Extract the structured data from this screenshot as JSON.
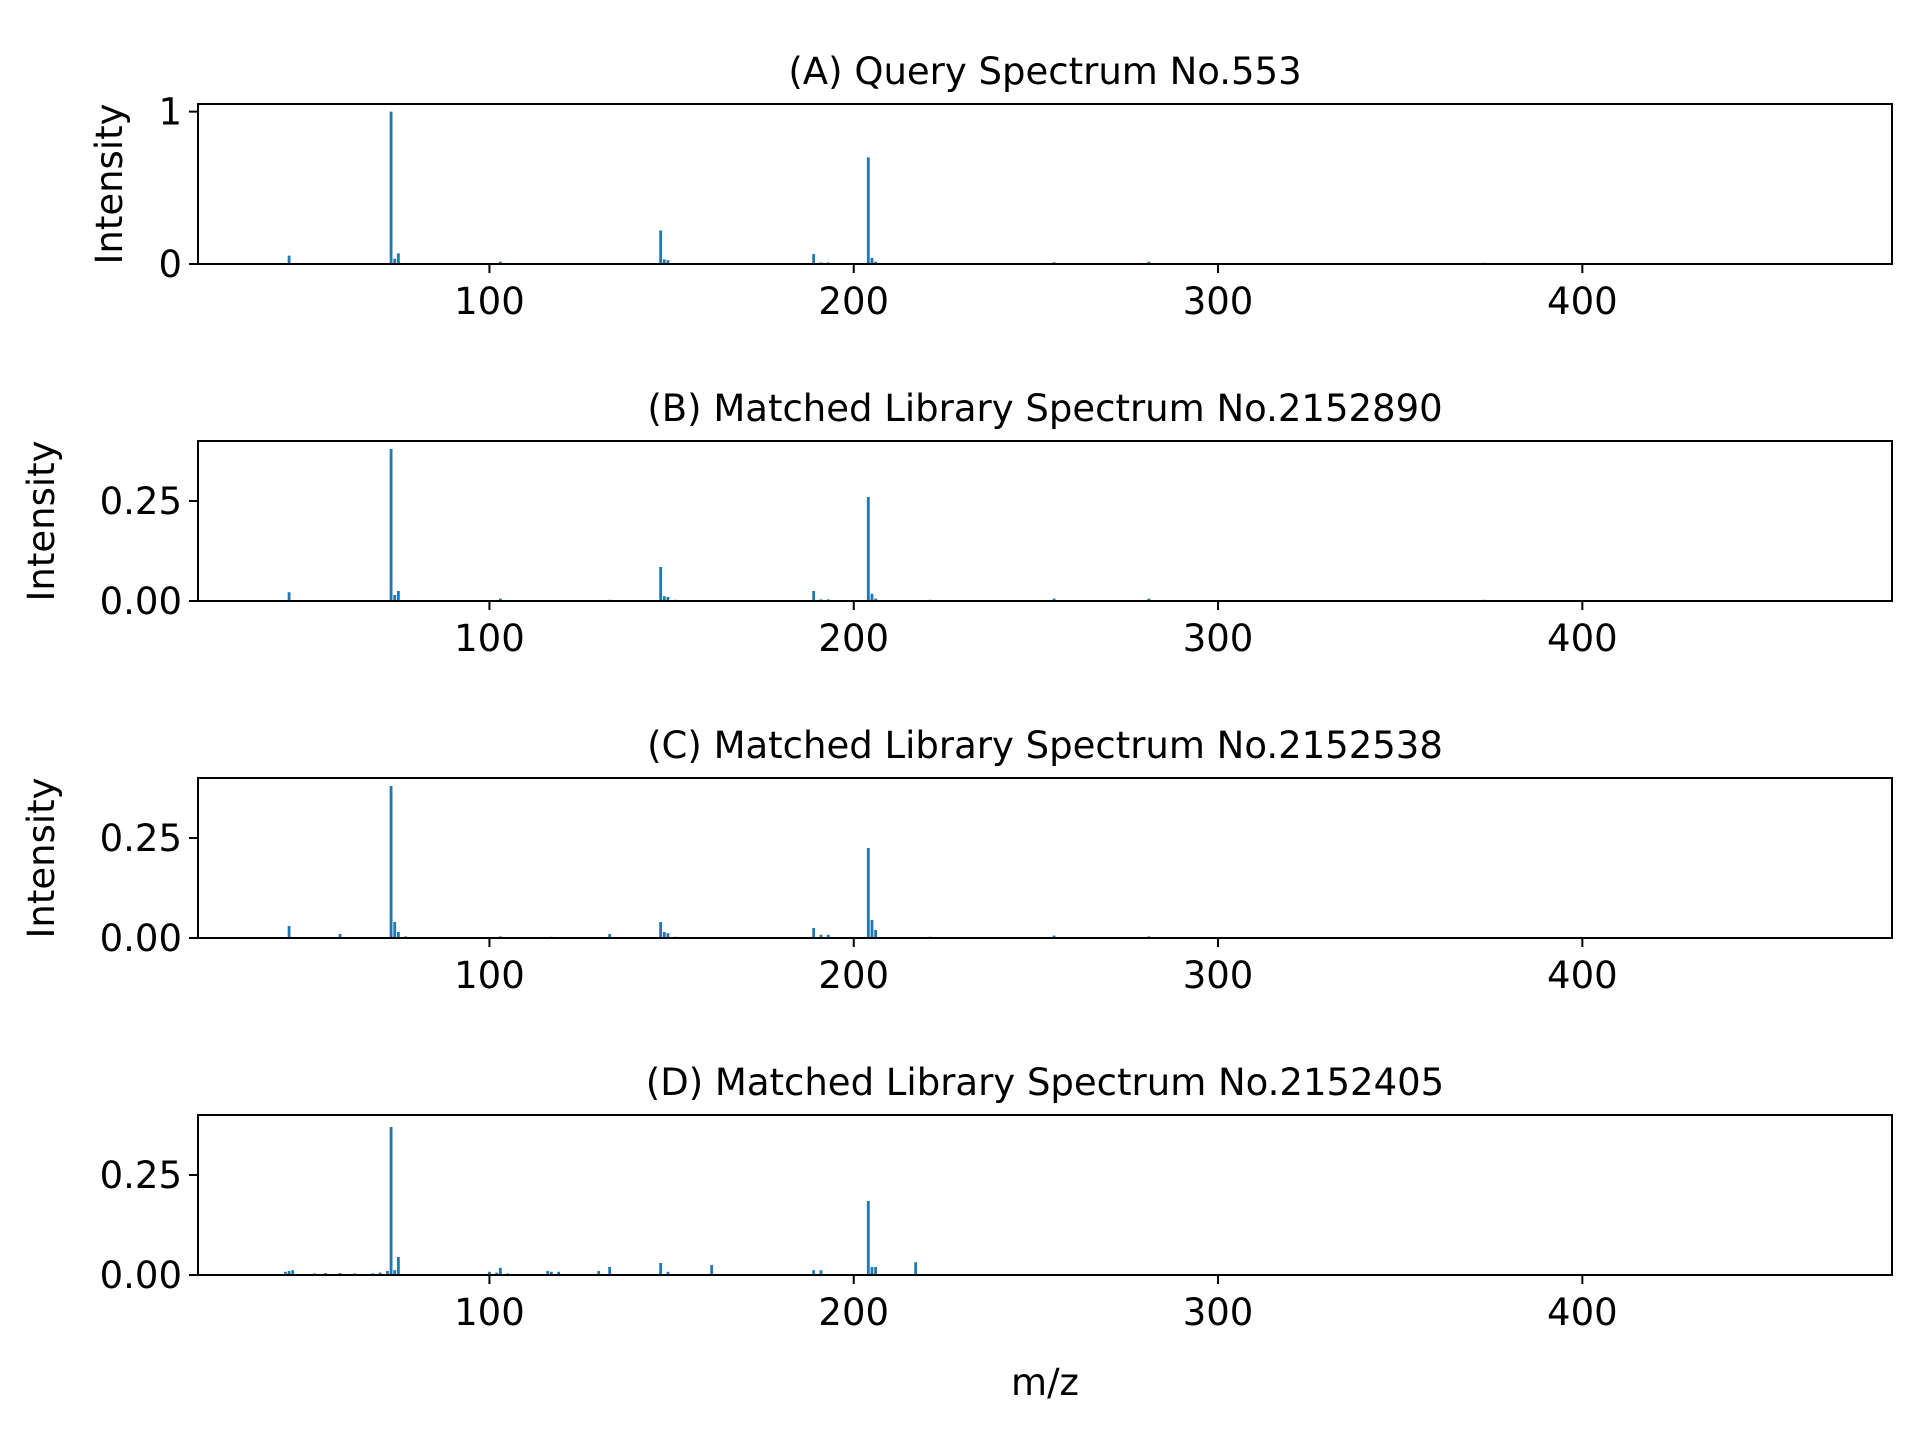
{
  "figure": {
    "xlabel": "m/z"
  },
  "colors": {
    "bar": "#1f77b4",
    "axis": "#000000"
  },
  "chart_data": [
    {
      "type": "bar",
      "title": "(A) Query Spectrum No.553",
      "xlabel": "",
      "ylabel": "Intensity",
      "xlim": [
        20,
        485
      ],
      "ylim": [
        0,
        1.05
      ],
      "xticks": [
        100,
        200,
        300,
        400
      ],
      "yticks": [
        {
          "value": 0,
          "label": "0"
        },
        {
          "value": 1,
          "label": "1"
        }
      ],
      "peaks": [
        [
          45,
          0.055
        ],
        [
          60,
          0.004
        ],
        [
          73,
          1.0
        ],
        [
          74,
          0.035
        ],
        [
          75,
          0.07
        ],
        [
          91,
          0.004
        ],
        [
          103,
          0.015
        ],
        [
          117,
          0.004
        ],
        [
          133,
          0.006
        ],
        [
          147,
          0.22
        ],
        [
          148,
          0.03
        ],
        [
          149,
          0.025
        ],
        [
          151,
          0.006
        ],
        [
          163,
          0.004
        ],
        [
          175,
          0.003
        ],
        [
          189,
          0.065
        ],
        [
          191,
          0.01
        ],
        [
          193,
          0.01
        ],
        [
          204,
          0.7
        ],
        [
          205,
          0.04
        ],
        [
          206,
          0.015
        ],
        [
          217,
          0.004
        ],
        [
          221,
          0.006
        ],
        [
          235,
          0.003
        ],
        [
          255,
          0.012
        ],
        [
          267,
          0.003
        ],
        [
          281,
          0.015
        ],
        [
          282,
          0.005
        ],
        [
          297,
          0.003
        ],
        [
          327,
          0.003
        ],
        [
          357,
          0.004
        ],
        [
          373,
          0.008
        ]
      ]
    },
    {
      "type": "bar",
      "title": "(B) Matched Library Spectrum No.2152890",
      "xlabel": "",
      "ylabel": "Intensity",
      "xlim": [
        20,
        485
      ],
      "ylim": [
        0,
        0.4
      ],
      "xticks": [
        100,
        200,
        300,
        400
      ],
      "yticks": [
        {
          "value": 0,
          "label": "0.00"
        },
        {
          "value": 0.25,
          "label": "0.25"
        }
      ],
      "peaks": [
        [
          45,
          0.022
        ],
        [
          60,
          0.002
        ],
        [
          73,
          0.38
        ],
        [
          74,
          0.015
        ],
        [
          75,
          0.025
        ],
        [
          91,
          0.002
        ],
        [
          103,
          0.006
        ],
        [
          133,
          0.003
        ],
        [
          147,
          0.085
        ],
        [
          148,
          0.012
        ],
        [
          149,
          0.01
        ],
        [
          151,
          0.003
        ],
        [
          189,
          0.025
        ],
        [
          191,
          0.004
        ],
        [
          193,
          0.004
        ],
        [
          204,
          0.26
        ],
        [
          205,
          0.018
        ],
        [
          206,
          0.006
        ],
        [
          221,
          0.003
        ],
        [
          255,
          0.006
        ],
        [
          281,
          0.006
        ],
        [
          282,
          0.002
        ],
        [
          373,
          0.003
        ]
      ]
    },
    {
      "type": "bar",
      "title": "(C) Matched Library Spectrum No.2152538",
      "xlabel": "",
      "ylabel": "Intensity",
      "xlim": [
        20,
        485
      ],
      "ylim": [
        0,
        0.4
      ],
      "xticks": [
        100,
        200,
        300,
        400
      ],
      "yticks": [
        {
          "value": 0,
          "label": "0.00"
        },
        {
          "value": 0.25,
          "label": "0.25"
        }
      ],
      "peaks": [
        [
          45,
          0.03
        ],
        [
          59,
          0.01
        ],
        [
          73,
          0.38
        ],
        [
          74,
          0.04
        ],
        [
          75,
          0.015
        ],
        [
          77,
          0.004
        ],
        [
          103,
          0.004
        ],
        [
          117,
          0.003
        ],
        [
          133,
          0.01
        ],
        [
          147,
          0.04
        ],
        [
          148,
          0.015
        ],
        [
          149,
          0.012
        ],
        [
          151,
          0.003
        ],
        [
          189,
          0.025
        ],
        [
          191,
          0.008
        ],
        [
          193,
          0.008
        ],
        [
          204,
          0.225
        ],
        [
          205,
          0.045
        ],
        [
          206,
          0.02
        ],
        [
          221,
          0.003
        ],
        [
          255,
          0.006
        ],
        [
          281,
          0.004
        ],
        [
          373,
          0.002
        ]
      ]
    },
    {
      "type": "bar",
      "title": "(D) Matched Library Spectrum No.2152405",
      "xlabel": "m/z",
      "ylabel": "",
      "xlim": [
        20,
        485
      ],
      "ylim": [
        0,
        0.4
      ],
      "xticks": [
        100,
        200,
        300,
        400
      ],
      "yticks": [
        {
          "value": 0,
          "label": "0.00"
        },
        {
          "value": 0.25,
          "label": "0.25"
        }
      ],
      "peaks": [
        [
          44,
          0.008
        ],
        [
          45,
          0.01
        ],
        [
          46,
          0.012
        ],
        [
          52,
          0.004
        ],
        [
          55,
          0.005
        ],
        [
          59,
          0.005
        ],
        [
          63,
          0.004
        ],
        [
          68,
          0.004
        ],
        [
          70,
          0.006
        ],
        [
          72,
          0.01
        ],
        [
          73,
          0.37
        ],
        [
          74,
          0.012
        ],
        [
          75,
          0.045
        ],
        [
          100,
          0.008
        ],
        [
          102,
          0.006
        ],
        [
          103,
          0.018
        ],
        [
          105,
          0.004
        ],
        [
          116,
          0.01
        ],
        [
          117,
          0.008
        ],
        [
          119,
          0.008
        ],
        [
          130,
          0.01
        ],
        [
          133,
          0.02
        ],
        [
          147,
          0.03
        ],
        [
          149,
          0.008
        ],
        [
          161,
          0.025
        ],
        [
          189,
          0.012
        ],
        [
          191,
          0.012
        ],
        [
          204,
          0.185
        ],
        [
          205,
          0.02
        ],
        [
          206,
          0.02
        ],
        [
          217,
          0.032
        ]
      ]
    }
  ]
}
